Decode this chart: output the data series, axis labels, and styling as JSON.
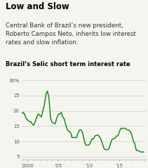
{
  "title_bold": "Low and Slow",
  "subtitle": "Central Bank of Brazil’s new president,\nRoberto Campos Neto, inherits low interest\nrates and slow inflation.",
  "chart_title": "Brazil’s Selic short term interest rate",
  "line_color": "#1a8c1a",
  "background_color": "#f5f5f0",
  "ylim": [
    4,
    31
  ],
  "yticks": [
    5,
    10,
    15,
    20,
    25,
    30
  ],
  "ytick_labels": [
    "5",
    "10",
    "15",
    "20",
    "25",
    "30%"
  ],
  "xtick_positions": [
    2000,
    2005,
    2010,
    2015
  ],
  "xtick_labels": [
    "2000",
    "’05",
    "’10",
    "’15"
  ],
  "xlim": [
    1999.0,
    2019.3
  ],
  "years": [
    1999.0,
    1999.25,
    1999.5,
    1999.75,
    2000.0,
    2000.25,
    2000.5,
    2000.75,
    2001.0,
    2001.25,
    2001.5,
    2001.75,
    2002.0,
    2002.25,
    2002.5,
    2002.75,
    2003.0,
    2003.25,
    2003.5,
    2003.75,
    2004.0,
    2004.25,
    2004.5,
    2004.75,
    2005.0,
    2005.25,
    2005.5,
    2005.75,
    2006.0,
    2006.25,
    2006.5,
    2006.75,
    2007.0,
    2007.25,
    2007.5,
    2007.75,
    2008.0,
    2008.25,
    2008.5,
    2008.75,
    2009.0,
    2009.25,
    2009.5,
    2009.75,
    2010.0,
    2010.25,
    2010.5,
    2010.75,
    2011.0,
    2011.25,
    2011.5,
    2011.75,
    2012.0,
    2012.25,
    2012.5,
    2012.75,
    2013.0,
    2013.25,
    2013.5,
    2013.75,
    2014.0,
    2014.25,
    2014.5,
    2014.75,
    2015.0,
    2015.25,
    2015.5,
    2015.75,
    2016.0,
    2016.25,
    2016.5,
    2016.75,
    2017.0,
    2017.25,
    2017.5,
    2017.75,
    2018.0,
    2018.25,
    2018.5,
    2018.75,
    2019.0
  ],
  "values": [
    19.0,
    19.5,
    19.0,
    17.5,
    17.0,
    16.5,
    16.5,
    15.75,
    15.25,
    16.5,
    18.0,
    19.0,
    18.5,
    18.0,
    20.0,
    22.0,
    25.5,
    26.5,
    24.0,
    17.5,
    16.25,
    16.0,
    15.75,
    17.5,
    18.75,
    19.0,
    19.5,
    18.0,
    17.25,
    15.25,
    13.75,
    13.25,
    13.0,
    11.25,
    11.25,
    11.25,
    11.25,
    12.75,
    13.75,
    13.75,
    12.75,
    10.25,
    8.75,
    8.75,
    8.75,
    9.5,
    10.75,
    10.75,
    11.75,
    12.0,
    12.0,
    11.5,
    10.5,
    9.0,
    7.5,
    7.25,
    7.25,
    7.5,
    9.0,
    10.5,
    10.75,
    11.0,
    11.75,
    11.75,
    13.25,
    14.25,
    14.25,
    14.25,
    14.25,
    13.75,
    13.75,
    13.25,
    12.25,
    10.25,
    9.25,
    7.0,
    7.0,
    6.75,
    6.5,
    6.5,
    6.5
  ]
}
